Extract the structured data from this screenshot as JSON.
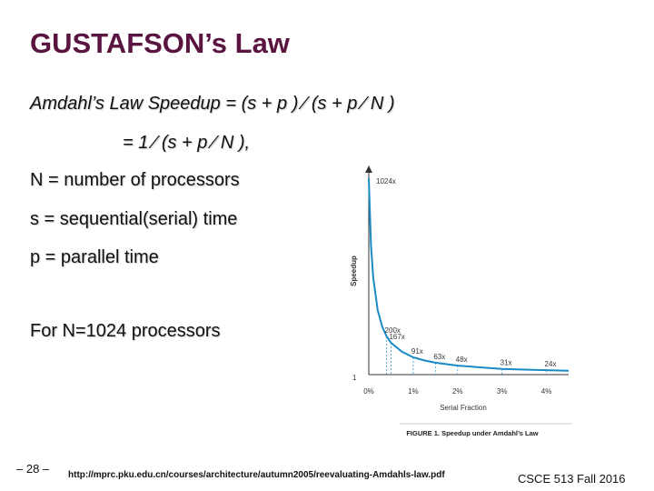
{
  "slide": {
    "title": "GUSTAFSON’s Law",
    "lines": [
      "Amdahl’s Law Speedup = (s + p ) ⁄ (s + p ⁄ N )",
      "= 1 ⁄ (s + p ⁄ N ),",
      "N = number of processors",
      "s = sequential(serial) time",
      "p = parallel time",
      "For N=1024 processors"
    ],
    "footer": {
      "page": "– 28 –",
      "url": "http://mprc.pku.edu.cn/courses/architecture/autumn2005/reevaluating-Amdahls-law.pdf",
      "course": "CSCE 513 Fall 2016"
    }
  },
  "chart_data": {
    "type": "line",
    "caption": "FIGURE 1. Speedup under Amdahl’s Law",
    "xlabel": "Serial Fraction",
    "ylabel": "Speedup",
    "x_ticks": [
      "0%",
      "1%",
      "2%",
      "3%",
      "4%"
    ],
    "y_tick_bottom": "1",
    "annotations": [
      {
        "x": 0.0,
        "label": "1024x"
      },
      {
        "x": 0.4,
        "label": "200x"
      },
      {
        "x": 0.5,
        "label": "167x"
      },
      {
        "x": 1.0,
        "label": "91x"
      },
      {
        "x": 1.5,
        "label": "63x"
      },
      {
        "x": 2.0,
        "label": "48x"
      },
      {
        "x": 3.0,
        "label": "31x"
      },
      {
        "x": 4.0,
        "label": "24x"
      }
    ],
    "series": [
      {
        "x": [
          0.0,
          0.05,
          0.1,
          0.2,
          0.3,
          0.4,
          0.5,
          0.75,
          1.0,
          1.25,
          1.5,
          2.0,
          2.5,
          3.0,
          3.5,
          4.0,
          4.5
        ],
        "values": [
          1024,
          677,
          506,
          337,
          252,
          200,
          167,
          120,
          91,
          75,
          63,
          48,
          39,
          31,
          27,
          24,
          21
        ]
      }
    ],
    "xlim": [
      0,
      4.5
    ],
    "ylim": [
      1,
      1024
    ],
    "grid": false
  }
}
